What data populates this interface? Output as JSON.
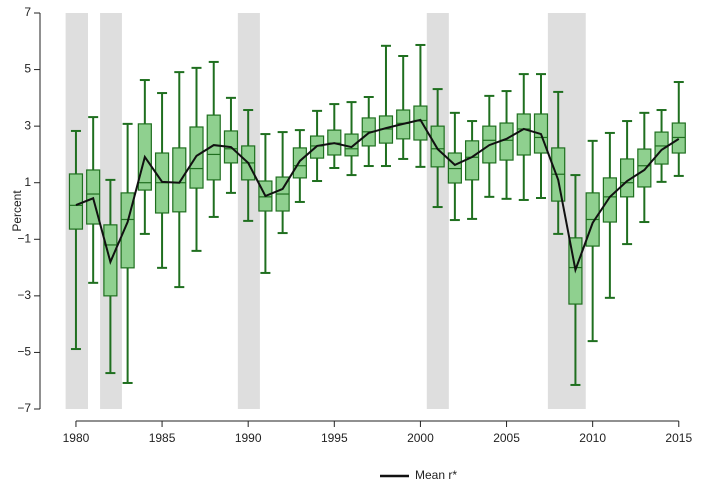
{
  "chart_data": {
    "type": "box",
    "y_label": "Percent",
    "x": [
      1980,
      1981,
      1982,
      1983,
      1984,
      1985,
      1986,
      1987,
      1988,
      1989,
      1990,
      1991,
      1992,
      1993,
      1994,
      1995,
      1996,
      1997,
      1998,
      1999,
      2000,
      2001,
      2002,
      2003,
      2004,
      2005,
      2006,
      2007,
      2008,
      2009,
      2010,
      2011,
      2012,
      2013,
      2014,
      2015
    ],
    "whisker_high": [
      2.83,
      3.32,
      1.1,
      3.08,
      4.63,
      4.17,
      4.91,
      5.06,
      5.27,
      4.0,
      3.57,
      2.72,
      2.79,
      2.86,
      3.54,
      3.78,
      3.85,
      4.03,
      5.84,
      5.48,
      5.87,
      4.31,
      3.47,
      3.18,
      4.07,
      4.24,
      4.84,
      4.84,
      4.21,
      1.27,
      2.48,
      2.76,
      3.18,
      3.47,
      3.57,
      4.56
    ],
    "q3": [
      1.31,
      1.45,
      -0.49,
      0.64,
      3.08,
      2.05,
      2.23,
      2.97,
      3.39,
      2.83,
      2.3,
      1.06,
      1.2,
      2.23,
      2.65,
      2.86,
      2.72,
      3.29,
      3.36,
      3.57,
      3.71,
      3.0,
      2.05,
      2.48,
      3.0,
      3.11,
      3.43,
      3.43,
      2.23,
      -0.95,
      0.64,
      1.17,
      1.84,
      2.19,
      2.79,
      3.11
    ],
    "median": [
      0.2,
      0.6,
      -1.2,
      -0.3,
      1.0,
      1.0,
      1.0,
      1.5,
      2.0,
      2.2,
      1.7,
      0.5,
      0.6,
      1.6,
      2.3,
      2.4,
      2.2,
      2.8,
      2.9,
      3.1,
      3.2,
      2.2,
      1.5,
      1.9,
      2.5,
      2.5,
      2.9,
      2.6,
      1.3,
      -2.0,
      -0.3,
      0.5,
      1.0,
      1.6,
      2.3,
      2.6
    ],
    "q1": [
      -0.64,
      -0.46,
      -3.0,
      -2.01,
      0.74,
      -0.07,
      -0.03,
      0.81,
      1.1,
      1.7,
      1.1,
      0.0,
      0.0,
      1.17,
      1.87,
      1.98,
      1.95,
      2.3,
      2.4,
      2.55,
      2.51,
      1.56,
      0.99,
      1.1,
      1.7,
      1.8,
      1.98,
      2.05,
      0.35,
      -3.29,
      -1.24,
      -0.39,
      0.5,
      0.85,
      1.66,
      2.05
    ],
    "whisker_low": [
      -4.88,
      -2.54,
      -5.73,
      -6.08,
      -0.81,
      -2.01,
      -2.69,
      -1.41,
      -0.21,
      0.64,
      -0.35,
      -2.19,
      -0.78,
      0.32,
      1.06,
      1.52,
      1.27,
      1.59,
      1.59,
      1.84,
      1.56,
      0.14,
      -0.32,
      -0.28,
      0.5,
      0.43,
      0.39,
      0.46,
      -0.81,
      -6.15,
      -4.6,
      -3.07,
      -1.17,
      -0.39,
      1.03,
      1.24
    ],
    "box_color": "#8fd08f",
    "box_edge_color": "#1f6f1f",
    "mean_series": {
      "name": "Mean r*",
      "color": "#111111",
      "values": [
        0.21,
        0.45,
        -1.8,
        -0.39,
        1.91,
        1.03,
        1.0,
        1.95,
        2.33,
        2.26,
        1.7,
        0.53,
        0.78,
        1.77,
        2.3,
        2.4,
        2.26,
        2.76,
        2.93,
        3.08,
        3.22,
        2.19,
        1.63,
        1.91,
        2.33,
        2.55,
        2.9,
        2.72,
        1.1,
        -2.08,
        -0.42,
        0.5,
        1.06,
        1.45,
        2.16,
        2.55
      ]
    },
    "recessions": [
      [
        1979.4,
        1980.7
      ],
      [
        1981.4,
        1982.67
      ],
      [
        1989.4,
        1990.68
      ],
      [
        2000.37,
        2001.65
      ],
      [
        2007.4,
        2009.6
      ]
    ],
    "recession_color": "#dedede",
    "xlim": [
      1978,
      2016
    ],
    "ylim": [
      -7,
      7
    ],
    "xticks": [
      1980,
      1985,
      1990,
      1995,
      2000,
      2005,
      2010,
      2015
    ],
    "yticks": [
      {
        "value": -7,
        "label": "−7"
      },
      {
        "value": -5,
        "label": "−5"
      },
      {
        "value": -3,
        "label": "−3"
      },
      {
        "value": -1,
        "label": "−1"
      },
      1,
      3,
      5,
      7
    ]
  }
}
